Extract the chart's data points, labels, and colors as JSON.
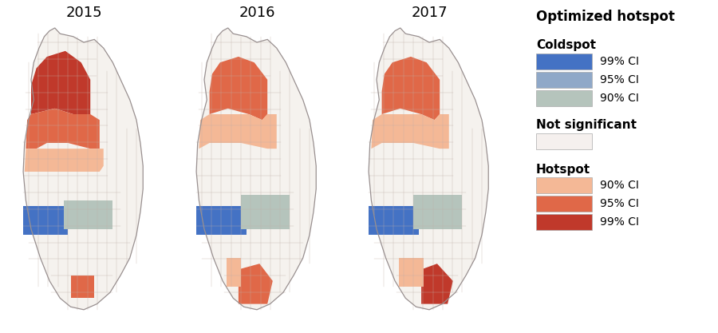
{
  "years": [
    "2015",
    "2016",
    "2017"
  ],
  "legend": {
    "title": "Optimized hotspot",
    "coldspot_label": "Coldspot",
    "coldspot_colors": [
      "#4472C4",
      "#8FA8C8",
      "#B5C4BC"
    ],
    "coldspot_labels": [
      "99% CI",
      "95% CI",
      "90% CI"
    ],
    "not_significant_label": "Not significant",
    "not_significant_color": "#F5F0EE",
    "hotspot_label": "Hotspot",
    "hotspot_colors": [
      "#F4B896",
      "#E06848",
      "#C0392B"
    ],
    "hotspot_labels": [
      "90% CI",
      "95% CI",
      "99% CI"
    ]
  },
  "background_color": "#FFFFFF",
  "map_bg_color": "#F5F2EE",
  "map_line_color": "#C0B8B0",
  "title_fontsize": 12,
  "label_fontsize": 11,
  "ci_fontsize": 10
}
